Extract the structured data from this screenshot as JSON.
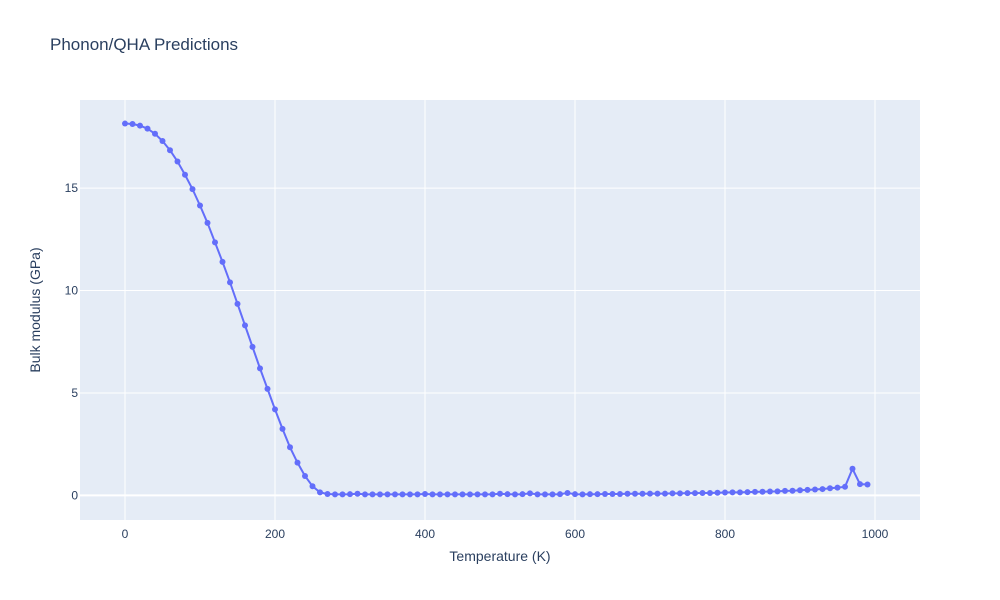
{
  "chart_data": {
    "type": "line",
    "title": "Phonon/QHA Predictions",
    "xlabel": "Temperature (K)",
    "ylabel": "Bulk modulus (GPa)",
    "xlim": [
      -60,
      1060
    ],
    "ylim": [
      -1.2,
      19.3
    ],
    "xticks": [
      0,
      200,
      400,
      600,
      800,
      1000
    ],
    "yticks": [
      0,
      5,
      10,
      15
    ],
    "grid": true,
    "legend": "none",
    "colors": {
      "series": "#636efa",
      "plot_bg": "#e5ecf6",
      "grid": "#ffffff",
      "text": "#2a3f5f"
    },
    "series": [
      {
        "mode": "lines+markers",
        "x": [
          0,
          10,
          20,
          30,
          40,
          50,
          60,
          70,
          80,
          90,
          100,
          110,
          120,
          130,
          140,
          150,
          160,
          170,
          180,
          190,
          200,
          210,
          220,
          230,
          240,
          250,
          260,
          270,
          280,
          290,
          300,
          310,
          320,
          330,
          340,
          350,
          360,
          370,
          380,
          390,
          400,
          410,
          420,
          430,
          440,
          450,
          460,
          470,
          480,
          490,
          500,
          510,
          520,
          530,
          540,
          550,
          560,
          570,
          580,
          590,
          600,
          610,
          620,
          630,
          640,
          650,
          660,
          670,
          680,
          690,
          700,
          710,
          720,
          730,
          740,
          750,
          760,
          770,
          780,
          790,
          800,
          810,
          820,
          830,
          840,
          850,
          860,
          870,
          880,
          890,
          900,
          910,
          920,
          930,
          940,
          950,
          960,
          970,
          980,
          990
        ],
        "y": [
          18.15,
          18.13,
          18.05,
          17.9,
          17.65,
          17.3,
          16.85,
          16.3,
          15.65,
          14.95,
          14.15,
          13.3,
          12.35,
          11.4,
          10.4,
          9.35,
          8.3,
          7.25,
          6.2,
          5.2,
          4.2,
          3.25,
          2.35,
          1.6,
          0.95,
          0.45,
          0.15,
          0.07,
          0.05,
          0.05,
          0.06,
          0.08,
          0.05,
          0.05,
          0.05,
          0.05,
          0.05,
          0.05,
          0.05,
          0.05,
          0.07,
          0.05,
          0.05,
          0.05,
          0.05,
          0.05,
          0.05,
          0.05,
          0.05,
          0.05,
          0.08,
          0.06,
          0.05,
          0.06,
          0.1,
          0.05,
          0.05,
          0.05,
          0.06,
          0.12,
          0.06,
          0.05,
          0.06,
          0.06,
          0.07,
          0.07,
          0.07,
          0.08,
          0.08,
          0.08,
          0.09,
          0.09,
          0.09,
          0.1,
          0.1,
          0.11,
          0.11,
          0.12,
          0.12,
          0.13,
          0.14,
          0.15,
          0.15,
          0.16,
          0.17,
          0.18,
          0.19,
          0.2,
          0.22,
          0.23,
          0.25,
          0.27,
          0.29,
          0.31,
          0.35,
          0.38,
          0.42,
          1.3,
          0.55,
          0.53
        ]
      }
    ]
  }
}
